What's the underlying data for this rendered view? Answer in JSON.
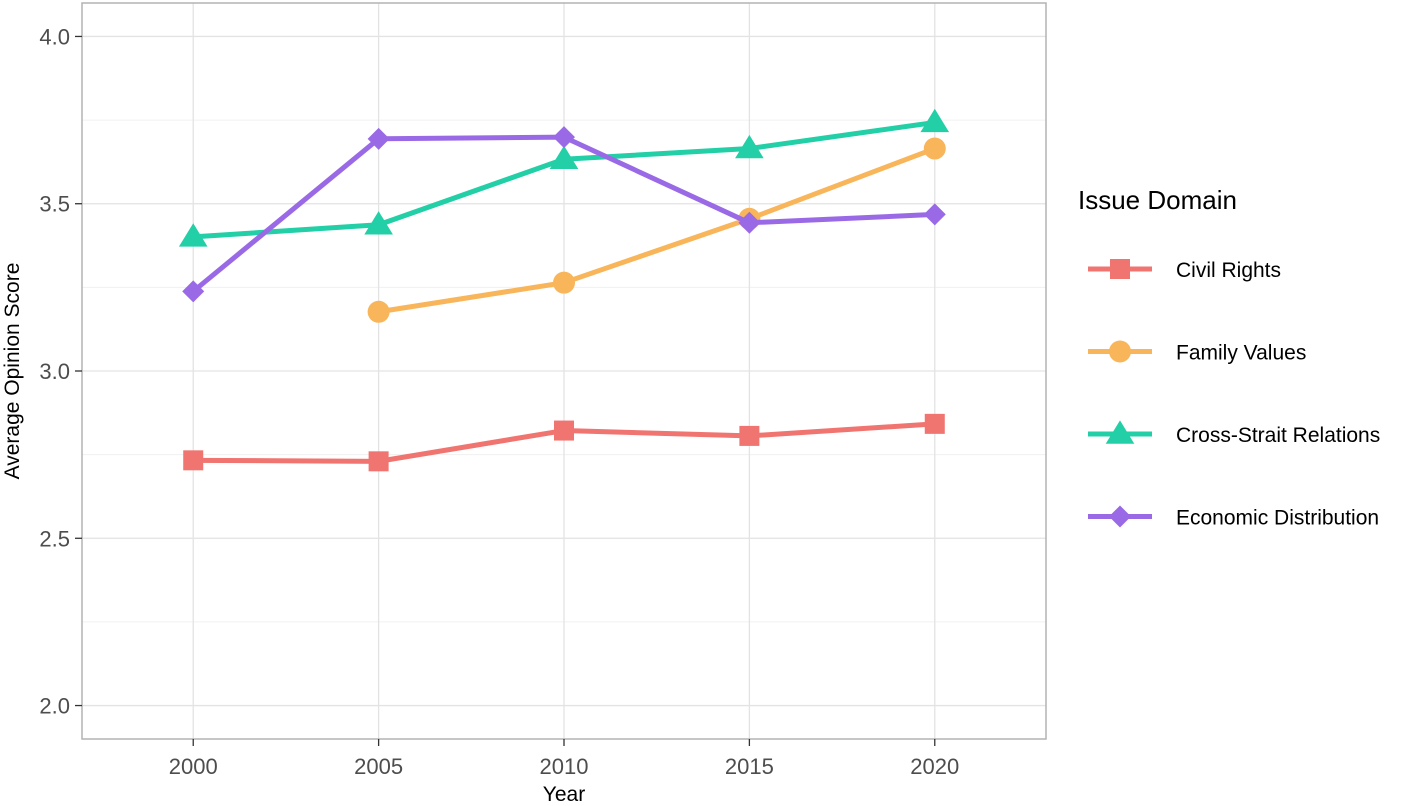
{
  "chart_data": {
    "type": "line",
    "title": "",
    "xlabel": "Year",
    "ylabel": "Average Opinion Score",
    "x": [
      2000,
      2005,
      2010,
      2015,
      2020
    ],
    "xlim": [
      1997,
      2023
    ],
    "ylim": [
      1.9,
      4.1
    ],
    "xticks": [
      2000,
      2005,
      2010,
      2015,
      2020
    ],
    "yticks": [
      2.0,
      2.5,
      3.0,
      3.5,
      4.0
    ],
    "ytick_labels": [
      "2.0",
      "2.5",
      "3.0",
      "3.5",
      "4.0"
    ],
    "grid": true,
    "legend": {
      "title": "Issue Domain",
      "placement": "right"
    },
    "series": [
      {
        "name": "Civil Rights",
        "color": "#F07470",
        "marker": "square",
        "values": [
          2.733,
          2.73,
          2.822,
          2.806,
          2.842
        ]
      },
      {
        "name": "Family Values",
        "color": "#F8B55A",
        "marker": "circle",
        "values": [
          null,
          3.177,
          3.264,
          3.455,
          3.665
        ]
      },
      {
        "name": "Cross-Strait Relations",
        "color": "#23CFA6",
        "marker": "triangle",
        "values": [
          3.401,
          3.437,
          3.633,
          3.665,
          3.743
        ]
      },
      {
        "name": "Economic Distribution",
        "color": "#9A6AE6",
        "marker": "diamond",
        "values": [
          3.238,
          3.694,
          3.699,
          3.443,
          3.468
        ]
      }
    ]
  }
}
